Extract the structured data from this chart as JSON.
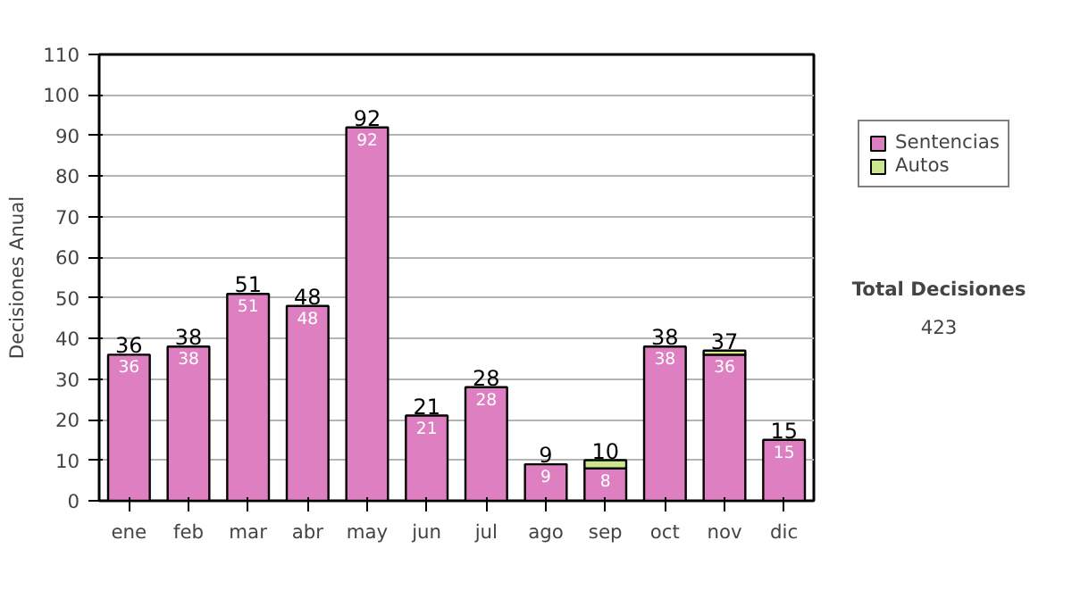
{
  "chart_data": {
    "type": "bar",
    "stacked": true,
    "ylabel": "Decisiones Anual",
    "categories": [
      "ene",
      "feb",
      "mar",
      "abr",
      "may",
      "jun",
      "jul",
      "ago",
      "sep",
      "oct",
      "nov",
      "dic"
    ],
    "series": [
      {
        "name": "Sentencias",
        "color": "#dd7fc0",
        "values": [
          36,
          38,
          51,
          48,
          92,
          21,
          28,
          9,
          8,
          38,
          36,
          15
        ],
        "value_labels": [
          "36",
          "38",
          "51",
          "48",
          "92",
          "21",
          "28",
          "9",
          "8",
          "38",
          "36",
          "15"
        ]
      },
      {
        "name": "Autos",
        "color": "#cce68f",
        "values": [
          0,
          0,
          0,
          0,
          0,
          0,
          0,
          0,
          2,
          0,
          1,
          0
        ]
      }
    ],
    "totals": [
      "36",
      "38",
      "51",
      "48",
      "92",
      "21",
      "28",
      "9",
      "10",
      "38",
      "37",
      "15"
    ],
    "ylim": [
      0,
      110
    ],
    "yticks": [
      0,
      10,
      20,
      30,
      40,
      50,
      60,
      70,
      80,
      90,
      100,
      110
    ],
    "grid": "y",
    "legend": "right",
    "annotations": [
      "Total Decisiones",
      "423"
    ]
  }
}
